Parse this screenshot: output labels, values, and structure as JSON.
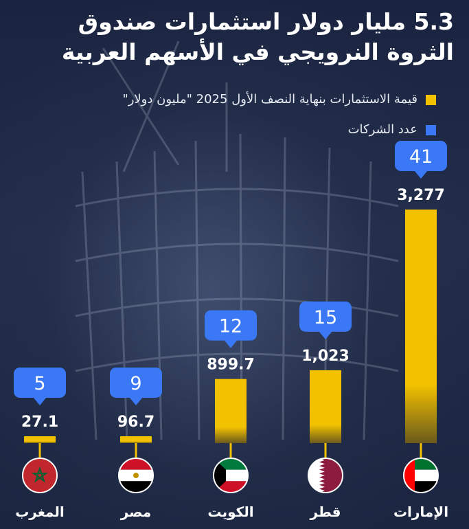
{
  "title": "5.3 مليار دولار استثمارات صندوق الثروة النرويجي في الأسهم العربية",
  "legend": {
    "investment_label": "قيمة الاستثمارات بنهاية النصف الأول 2025 \"مليون دولار\"",
    "companies_label": "عدد الشركات"
  },
  "colors": {
    "investment": "#f2c100",
    "companies": "#3b78f5",
    "background": "#1b2640"
  },
  "chart_data": {
    "type": "bar",
    "categories": [
      "المغرب",
      "مصر",
      "الكويت",
      "قطر",
      "الإمارات"
    ],
    "series": [
      {
        "name": "قيمة الاستثمارات بنهاية النصف الأول 2025 \"مليون دولار\"",
        "values": [
          27.1,
          96.7,
          899.7,
          1023,
          3277
        ],
        "labels": [
          "27.1",
          "96.7",
          "899.7",
          "1,023",
          "3,277"
        ]
      },
      {
        "name": "عدد الشركات",
        "values": [
          5,
          9,
          12,
          15,
          41
        ]
      }
    ],
    "flags": [
      "morocco-flag-icon",
      "egypt-flag-icon",
      "kuwait-flag-icon",
      "qatar-flag-icon",
      "uae-flag-icon"
    ],
    "grid": false,
    "legend_position": "top-right"
  }
}
